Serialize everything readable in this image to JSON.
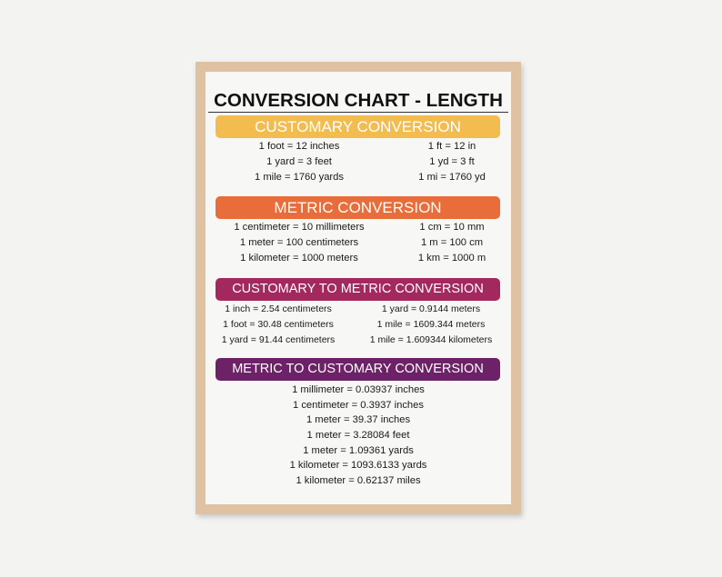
{
  "poster": {
    "title": "CONVERSION CHART - LENGTH",
    "colors": {
      "customary": "#f2bc4e",
      "metric": "#e86d3a",
      "customary_to_metric": "#a2285e",
      "metric_to_customary": "#6d2166",
      "frame": "#dfc2a2"
    },
    "sections": [
      {
        "heading": "CUSTOMARY CONVERSION",
        "rows": [
          [
            "1 foot = 12 inches",
            "1 ft = 12 in"
          ],
          [
            "1 yard = 3 feet",
            "1 yd = 3 ft"
          ],
          [
            "1 mile = 1760 yards",
            "1 mi = 1760 yd"
          ]
        ]
      },
      {
        "heading": "METRIC CONVERSION",
        "rows": [
          [
            "1 centimeter = 10 millimeters",
            "1 cm = 10 mm"
          ],
          [
            "1 meter = 100 centimeters",
            "1 m = 100 cm"
          ],
          [
            "1 kilometer = 1000 meters",
            "1 km = 1000 m"
          ]
        ]
      },
      {
        "heading": "CUSTOMARY TO METRIC CONVERSION",
        "rows": [
          [
            "1 inch = 2.54 centimeters",
            "1 yard = 0.9144 meters"
          ],
          [
            "1 foot = 30.48 centimeters",
            "1 mile = 1609.344 meters"
          ],
          [
            "1 yard = 91.44 centimeters",
            "1 mile = 1.609344 kilometers"
          ]
        ]
      },
      {
        "heading": "METRIC TO CUSTOMARY CONVERSION",
        "rows": [
          "1 millimeter = 0.03937 inches",
          "1 centimeter = 0.3937 inches",
          "1 meter = 39.37 inches",
          "1 meter = 3.28084 feet",
          "1 meter = 1.09361 yards",
          "1 kilometer = 1093.6133 yards",
          "1 kilometer = 0.62137 miles"
        ]
      }
    ]
  }
}
